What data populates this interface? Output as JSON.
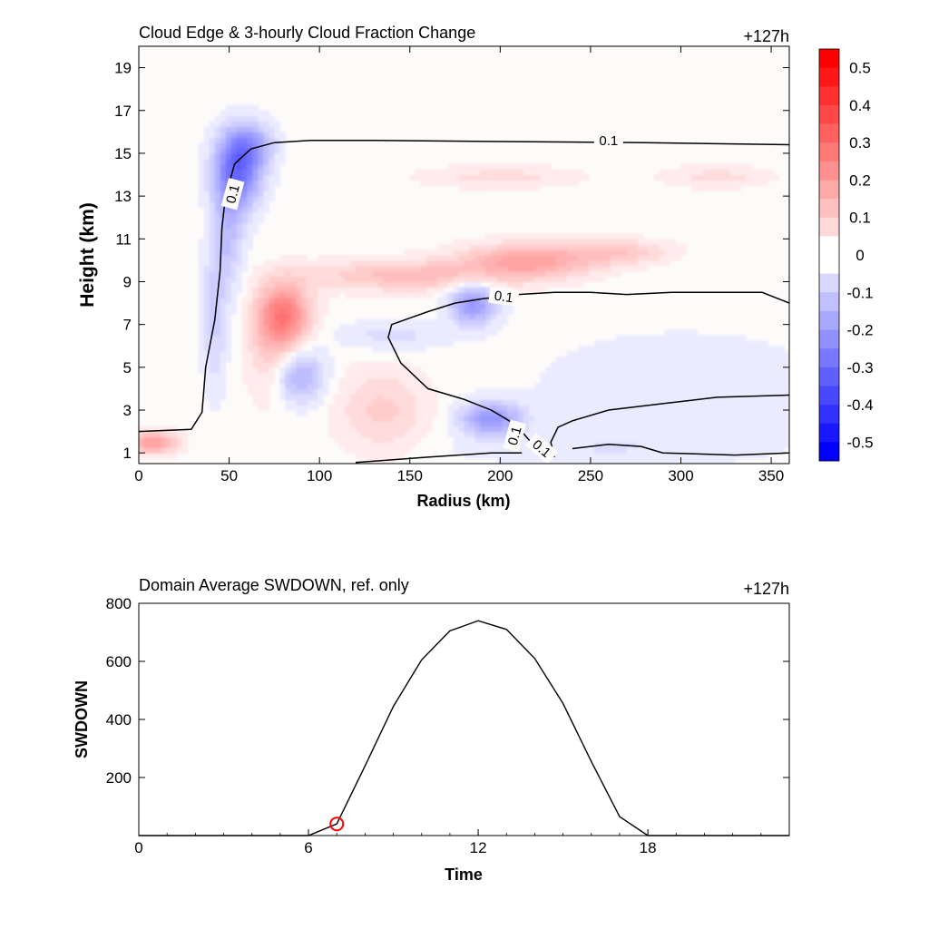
{
  "chart_data": [
    {
      "type": "heatmap",
      "title": "Cloud Edge & 3-hourly Cloud Fraction Change",
      "time_label": "+127h",
      "xlabel": "Radius (km)",
      "ylabel": "Height (km)",
      "xlim": [
        0,
        360
      ],
      "ylim": [
        0.5,
        20
      ],
      "xticks": [
        "0",
        "50",
        "100",
        "150",
        "200",
        "250",
        "300",
        "350"
      ],
      "yticks": [
        "1",
        "3",
        "5",
        "7",
        "9",
        "11",
        "13",
        "15",
        "17",
        "19"
      ],
      "colorbar": {
        "range": [
          -0.55,
          0.55
        ],
        "step": 0.05,
        "tick_labels": [
          "0.5",
          "0.4",
          "0.3",
          "0.2",
          "0.1",
          "0",
          "-0.1",
          "-0.2",
          "-0.3",
          "-0.4",
          "-0.5"
        ],
        "positive_color": "#ff0000",
        "negative_color": "#0000ff"
      },
      "contour_level_label": "0.1",
      "anomalies": [
        {
          "r": 55,
          "z": 14.2,
          "sr": 9,
          "sz": 1.2,
          "v": -0.24
        },
        {
          "r": 62,
          "z": 15.4,
          "sr": 9,
          "sz": 0.7,
          "v": -0.12
        },
        {
          "r": 50,
          "z": 11.5,
          "sr": 6,
          "sz": 2.0,
          "v": -0.09
        },
        {
          "r": 42,
          "z": 7.5,
          "sr": 5,
          "sz": 2.5,
          "v": -0.07
        },
        {
          "r": 80,
          "z": 7.5,
          "sr": 10,
          "sz": 1.0,
          "v": 0.22
        },
        {
          "r": 75,
          "z": 5.5,
          "sr": 10,
          "sz": 1.5,
          "v": 0.08
        },
        {
          "r": 88,
          "z": 4.6,
          "sr": 10,
          "sz": 0.9,
          "v": -0.14
        },
        {
          "r": 215,
          "z": 10.0,
          "sr": 25,
          "sz": 0.55,
          "v": 0.15
        },
        {
          "r": 150,
          "z": 9.3,
          "sr": 40,
          "sz": 0.5,
          "v": 0.1
        },
        {
          "r": 265,
          "z": 10.4,
          "sr": 20,
          "sz": 0.4,
          "v": 0.08
        },
        {
          "r": 185,
          "z": 8.0,
          "sr": 9,
          "sz": 0.7,
          "v": -0.17
        },
        {
          "r": 140,
          "z": 6.5,
          "sr": 20,
          "sz": 0.5,
          "v": -0.05
        },
        {
          "r": 195,
          "z": 2.6,
          "sr": 12,
          "sz": 0.55,
          "v": -0.17
        },
        {
          "r": 135,
          "z": 3.0,
          "sr": 18,
          "sz": 1.4,
          "v": 0.07
        },
        {
          "r": 8,
          "z": 1.5,
          "sr": 9,
          "sz": 0.35,
          "v": 0.17
        },
        {
          "r": 200,
          "z": 13.9,
          "sr": 30,
          "sz": 0.35,
          "v": 0.05
        },
        {
          "r": 320,
          "z": 13.9,
          "sr": 20,
          "sz": 0.35,
          "v": 0.05
        },
        {
          "r": 300,
          "z": 4.0,
          "sr": 60,
          "sz": 2.0,
          "v": -0.03
        },
        {
          "r": 250,
          "z": 1.2,
          "sr": 60,
          "sz": 0.5,
          "v": -0.03
        }
      ],
      "contour_lines": [
        [
          [
            0,
            2.0
          ],
          [
            29,
            2.1
          ],
          [
            35,
            2.9
          ],
          [
            37,
            5.0
          ],
          [
            42,
            7.2
          ],
          [
            45,
            9.5
          ],
          [
            46,
            11.5
          ],
          [
            48,
            13.0
          ],
          [
            53,
            14.5
          ],
          [
            62,
            15.2
          ],
          [
            75,
            15.5
          ],
          [
            95,
            15.6
          ],
          [
            130,
            15.6
          ],
          [
            200,
            15.55
          ],
          [
            280,
            15.5
          ],
          [
            360,
            15.4
          ]
        ],
        [
          [
            360,
            8.0
          ],
          [
            345,
            8.5
          ],
          [
            320,
            8.5
          ],
          [
            295,
            8.5
          ],
          [
            270,
            8.4
          ],
          [
            250,
            8.5
          ],
          [
            230,
            8.5
          ],
          [
            210,
            8.4
          ],
          [
            190,
            8.2
          ],
          [
            175,
            8.0
          ],
          [
            160,
            7.6
          ],
          [
            150,
            7.3
          ],
          [
            140,
            7.0
          ],
          [
            138,
            6.4
          ],
          [
            145,
            5.2
          ],
          [
            160,
            4.0
          ],
          [
            180,
            3.5
          ],
          [
            195,
            3.0
          ],
          [
            205,
            2.5
          ],
          [
            212,
            2.0
          ],
          [
            218,
            1.4
          ]
        ],
        [
          [
            230,
            0.8
          ],
          [
            228,
            1.5
          ],
          [
            232,
            2.2
          ],
          [
            240,
            2.5
          ],
          [
            260,
            3.0
          ],
          [
            290,
            3.3
          ],
          [
            320,
            3.6
          ],
          [
            360,
            3.7
          ]
        ],
        [
          [
            240,
            1.2
          ],
          [
            260,
            1.4
          ],
          [
            278,
            1.3
          ],
          [
            290,
            1.0
          ],
          [
            330,
            0.9
          ],
          [
            360,
            1.0
          ]
        ],
        [
          [
            120,
            0.55
          ],
          [
            160,
            0.8
          ],
          [
            195,
            1.0
          ],
          [
            212,
            1.0
          ]
        ]
      ],
      "contour_labels": [
        {
          "r": 105,
          "z": 14.9,
          "rot": -80,
          "text": "0.1"
        },
        {
          "r": 0,
          "z": 0,
          "rot": 0,
          "text": "0.1"
        },
        {
          "r": 0,
          "z": 0,
          "rot": -10,
          "text": "0.1"
        },
        {
          "r": 0,
          "z": 0,
          "rot": -75,
          "text": "0.1"
        },
        {
          "r": 0,
          "z": 0,
          "rot": 35,
          "text": "0.1"
        }
      ]
    },
    {
      "type": "line",
      "title": "Domain Average SWDOWN, ref. only",
      "time_label": "+127h",
      "xlabel": "Time",
      "ylabel": "SWDOWN",
      "xlim": [
        0,
        23
      ],
      "ylim": [
        0,
        800
      ],
      "xticks": [
        "0",
        "6",
        "12",
        "18"
      ],
      "yticks": [
        "200",
        "400",
        "600",
        "800"
      ],
      "series": [
        {
          "x": [
            0,
            1,
            2,
            3,
            4,
            5,
            6,
            7,
            8,
            9,
            10,
            11,
            12,
            13,
            14,
            15,
            16,
            17,
            18,
            19,
            20,
            21,
            22,
            23
          ],
          "y": [
            0,
            0,
            0,
            0,
            0,
            0,
            0,
            40,
            240,
            445,
            605,
            705,
            740,
            710,
            610,
            455,
            255,
            65,
            0,
            0,
            0,
            0,
            0,
            0
          ]
        }
      ],
      "marker": {
        "x": 7,
        "y": 40,
        "color": "#ff0000"
      }
    }
  ]
}
